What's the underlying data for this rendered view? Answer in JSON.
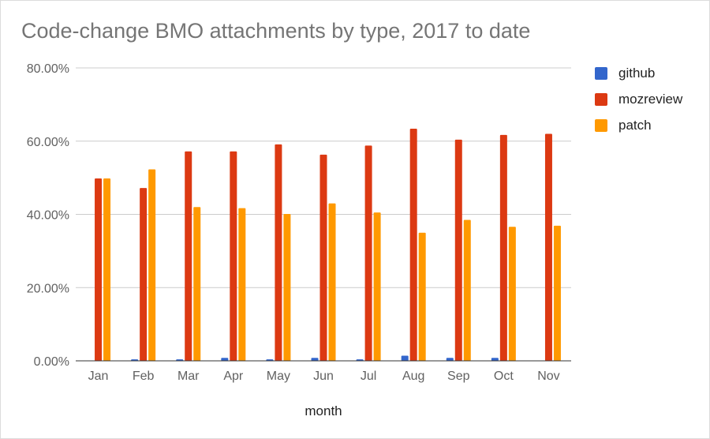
{
  "chart_data": {
    "type": "bar",
    "title": "Code-change BMO attachments by type, 2017 to date",
    "xlabel": "month",
    "ylabel": "",
    "ylim": [
      0,
      80
    ],
    "y_ticks": [
      0,
      20,
      40,
      60,
      80
    ],
    "y_tick_labels": [
      "0.00%",
      "20.00%",
      "40.00%",
      "60.00%",
      "80.00%"
    ],
    "grid": true,
    "legend_position": "right",
    "categories": [
      "Jan",
      "Feb",
      "Mar",
      "Apr",
      "May",
      "Jun",
      "Jul",
      "Aug",
      "Sep",
      "Oct",
      "Nov"
    ],
    "series": [
      {
        "name": "github",
        "color": "#3366cc",
        "values": [
          0.0,
          0.4,
          0.4,
          0.8,
          0.4,
          0.8,
          0.4,
          1.4,
          0.8,
          0.8,
          0.0
        ]
      },
      {
        "name": "mozreview",
        "color": "#dc3912",
        "values": [
          49.8,
          47.2,
          57.2,
          57.2,
          59.1,
          56.3,
          58.8,
          63.4,
          60.4,
          61.7,
          62.0
        ]
      },
      {
        "name": "patch",
        "color": "#ff9900",
        "values": [
          49.8,
          52.3,
          42.0,
          41.7,
          40.1,
          43.0,
          40.5,
          35.0,
          38.5,
          36.6,
          36.9
        ]
      }
    ]
  }
}
